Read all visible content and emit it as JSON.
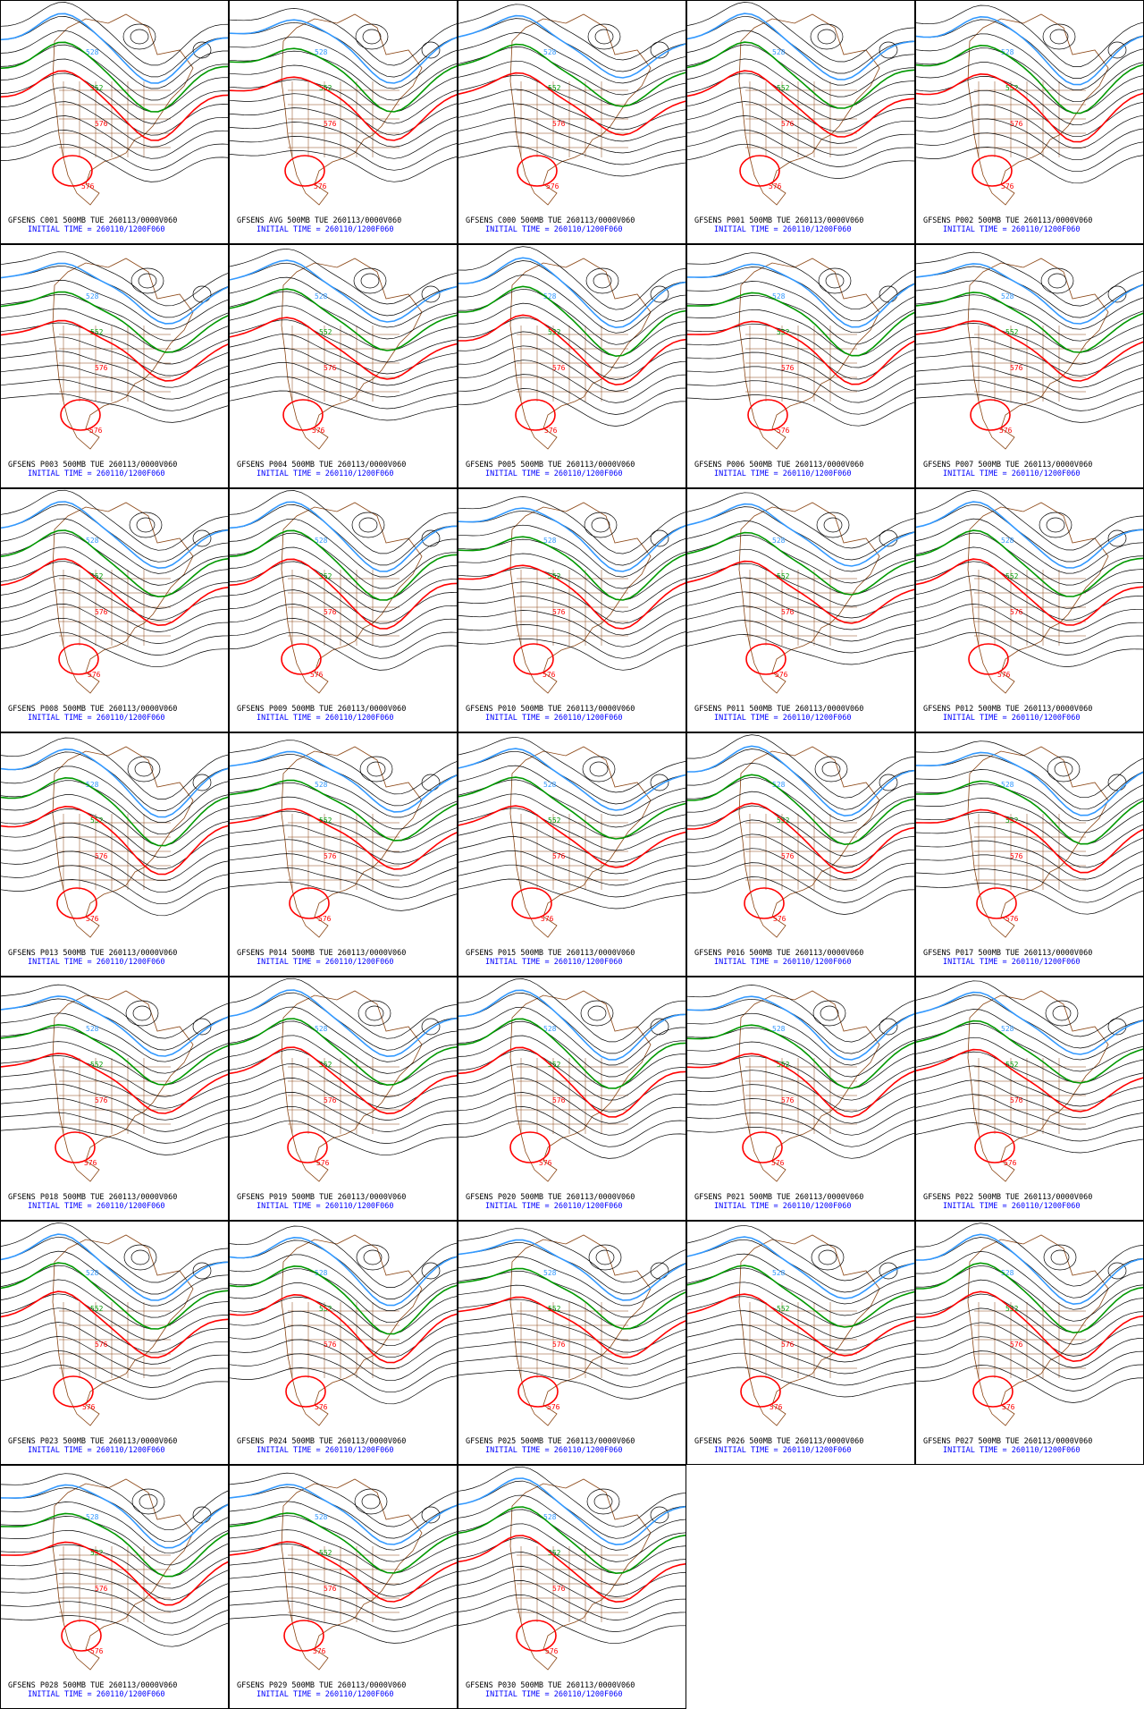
{
  "panels": [
    {
      "title": "GFSENS C001 500MB TUE 260113/0000V060",
      "subtitle": "INITIAL TIME = 260110/1200F060"
    },
    {
      "title": "GFSENS AVG 500MB TUE 260113/0000V060",
      "subtitle": "INITIAL TIME = 260110/1200F060"
    },
    {
      "title": "GFSENS C000 500MB TUE 260113/0000V060",
      "subtitle": "INITIAL TIME = 260110/1200F060"
    },
    {
      "title": "GFSENS P001 500MB TUE 260113/0000V060",
      "subtitle": "INITIAL TIME = 260110/1200F060"
    },
    {
      "title": "GFSENS P002 500MB TUE 260113/0000V060",
      "subtitle": "INITIAL TIME = 260110/1200F060"
    },
    {
      "title": "GFSENS P003 500MB TUE 260113/0000V060",
      "subtitle": "INITIAL TIME = 260110/1200F060"
    },
    {
      "title": "GFSENS P004 500MB TUE 260113/0000V060",
      "subtitle": "INITIAL TIME = 260110/1200F060"
    },
    {
      "title": "GFSENS P005 500MB TUE 260113/0000V060",
      "subtitle": "INITIAL TIME = 260110/1200F060"
    },
    {
      "title": "GFSENS P006 500MB TUE 260113/0000V060",
      "subtitle": "INITIAL TIME = 260110/1200F060"
    },
    {
      "title": "GFSENS P007 500MB TUE 260113/0000V060",
      "subtitle": "INITIAL TIME = 260110/1200F060"
    },
    {
      "title": "GFSENS P008 500MB TUE 260113/0000V060",
      "subtitle": "INITIAL TIME = 260110/1200F060"
    },
    {
      "title": "GFSENS P009 500MB TUE 260113/0000V060",
      "subtitle": "INITIAL TIME = 260110/1200F060"
    },
    {
      "title": "GFSENS P010 500MB TUE 260113/0000V060",
      "subtitle": "INITIAL TIME = 260110/1200F060"
    },
    {
      "title": "GFSENS P011 500MB TUE 260113/0000V060",
      "subtitle": "INITIAL TIME = 260110/1200F060"
    },
    {
      "title": "GFSENS P012 500MB TUE 260113/0000V060",
      "subtitle": "INITIAL TIME = 260110/1200F060"
    },
    {
      "title": "GFSENS P013 500MB TUE 260113/0000V060",
      "subtitle": "INITIAL TIME = 260110/1200F060"
    },
    {
      "title": "GFSENS P014 500MB TUE 260113/0000V060",
      "subtitle": "INITIAL TIME = 260110/1200F060"
    },
    {
      "title": "GFSENS P015 500MB TUE 260113/0000V060",
      "subtitle": "INITIAL TIME = 260110/1200F060"
    },
    {
      "title": "GFSENS P016 500MB TUE 260113/0000V060",
      "subtitle": "INITIAL TIME = 260110/1200F060"
    },
    {
      "title": "GFSENS P017 500MB TUE 260113/0000V060",
      "subtitle": "INITIAL TIME = 260110/1200F060"
    },
    {
      "title": "GFSENS P018 500MB TUE 260113/0000V060",
      "subtitle": "INITIAL TIME = 260110/1200F060"
    },
    {
      "title": "GFSENS P019 500MB TUE 260113/0000V060",
      "subtitle": "INITIAL TIME = 260110/1200F060"
    },
    {
      "title": "GFSENS P020 500MB TUE 260113/0000V060",
      "subtitle": "INITIAL TIME = 260110/1200F060"
    },
    {
      "title": "GFSENS P021 500MB TUE 260113/0000V060",
      "subtitle": "INITIAL TIME = 260110/1200F060"
    },
    {
      "title": "GFSENS P022 500MB TUE 260113/0000V060",
      "subtitle": "INITIAL TIME = 260110/1200F060"
    },
    {
      "title": "GFSENS P023 500MB TUE 260113/0000V060",
      "subtitle": "INITIAL TIME = 260110/1200F060"
    },
    {
      "title": "GFSENS P024 500MB TUE 260113/0000V060",
      "subtitle": "INITIAL TIME = 260110/1200F060"
    },
    {
      "title": "GFSENS P025 500MB TUE 260113/0000V060",
      "subtitle": "INITIAL TIME = 260110/1200F060"
    },
    {
      "title": "GFSENS P026 500MB TUE 260113/0000V060",
      "subtitle": "INITIAL TIME = 260110/1200F060"
    },
    {
      "title": "GFSENS P027 500MB TUE 260113/0000V060",
      "subtitle": "INITIAL TIME = 260110/1200F060"
    },
    {
      "title": "GFSENS P028 500MB TUE 260113/0000V060",
      "subtitle": "INITIAL TIME = 260110/1200F060"
    },
    {
      "title": "GFSENS P029 500MB TUE 260113/0000V060",
      "subtitle": "INITIAL TIME = 260110/1200F060"
    },
    {
      "title": "GFSENS P030 500MB TUE 260113/0000V060",
      "subtitle": "INITIAL TIME = 260110/1200F060"
    }
  ],
  "contours": [
    {
      "label": "528",
      "color": "#3399ff"
    },
    {
      "label": "552",
      "color": "#009900"
    },
    {
      "label": "576",
      "color": "#ff0000"
    }
  ]
}
